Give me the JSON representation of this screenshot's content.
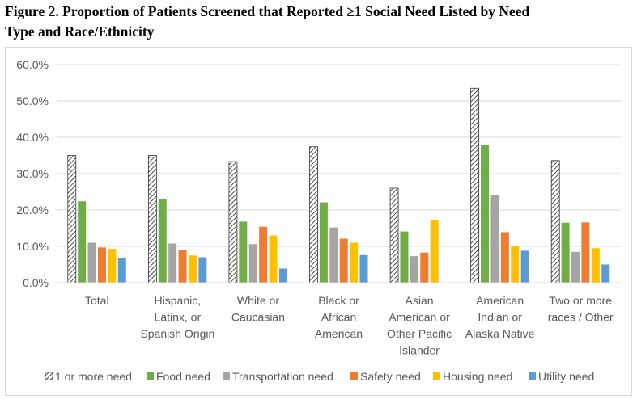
{
  "title_line1": "Figure 2. Proportion of Patients Screened that Reported ≥1 Social Need Listed by Need",
  "title_line2": "Type and Race/Ethnicity",
  "chart_data": {
    "type": "bar",
    "title": "Figure 2. Proportion of Patients Screened that Reported ≥1 Social Need Listed by Need Type and Race/Ethnicity",
    "ylim": [
      0,
      60
    ],
    "yticks": [
      "0.0%",
      "10.0%",
      "20.0%",
      "30.0%",
      "40.0%",
      "50.0%",
      "60.0%"
    ],
    "grid": true,
    "legend_position": "bottom",
    "categories": [
      [
        "Total"
      ],
      [
        "Hispanic,",
        "Latinx, or",
        "Spanish Origin"
      ],
      [
        "White or",
        "Caucasian"
      ],
      [
        "Black or",
        "African",
        "American"
      ],
      [
        "Asian",
        "American or",
        "Other Pacific",
        "Islander"
      ],
      [
        "American",
        "Indian or",
        "Alaska Native"
      ],
      [
        "Two or more",
        "races / Other"
      ]
    ],
    "series": [
      {
        "name": "1 or more need",
        "color": "#ffffff",
        "pattern": "hatch",
        "values": [
          35.0,
          35.0,
          33.3,
          37.4,
          26.0,
          53.5,
          33.6
        ]
      },
      {
        "name": "Food need",
        "color": "#70ad47",
        "values": [
          22.4,
          23.0,
          16.8,
          22.1,
          14.1,
          37.8,
          16.5
        ]
      },
      {
        "name": "Transportation need",
        "color": "#a5a5a5",
        "values": [
          11.0,
          10.8,
          10.6,
          15.2,
          7.3,
          24.1,
          8.5
        ]
      },
      {
        "name": "Safety need",
        "color": "#ed7d31",
        "values": [
          9.7,
          9.1,
          15.4,
          12.1,
          8.3,
          13.9,
          16.6
        ]
      },
      {
        "name": "Housing need",
        "color": "#ffc000",
        "values": [
          9.3,
          7.5,
          13.0,
          11.0,
          17.3,
          10.1,
          9.5
        ]
      },
      {
        "name": "Utility need",
        "color": "#5b9bd5",
        "values": [
          6.8,
          7.0,
          3.9,
          7.6,
          0,
          8.8,
          5.0
        ]
      }
    ]
  }
}
